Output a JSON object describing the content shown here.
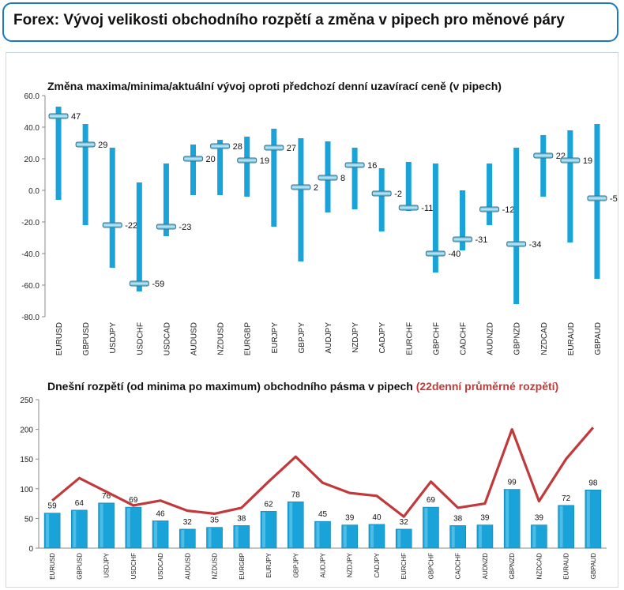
{
  "header": {
    "title": "Forex: Vývoj velikosti obchodního rozpětí a změna v pipech pro měnové páry"
  },
  "colors": {
    "bar": "#1aa3d8",
    "bar_dark": "#0f7fb0",
    "line": "#c0393b",
    "border": "#1a78c2",
    "highlight_text": "#c0393b"
  },
  "chart_data": [
    {
      "type": "candlestick-range",
      "title": "Změna maxima/minima/aktuální vývoj oproti předchozí denní uzavírací ceně (v pipech)",
      "categories": [
        "EURUSD",
        "GBPUSD",
        "USDJPY",
        "USDCHF",
        "USDCAD",
        "AUDUSD",
        "NZDUSD",
        "EURGBP",
        "EURJPY",
        "GBPJPY",
        "AUDJPY",
        "NZDJPY",
        "CADJPY",
        "EURCHF",
        "GBPCHF",
        "CADCHF",
        "AUDNZD",
        "GBPNZD",
        "NZDCAD",
        "EURAUD",
        "GBPAUD"
      ],
      "high": [
        53,
        42,
        27,
        5,
        17,
        29,
        32,
        34,
        39,
        33,
        31,
        27,
        14,
        18,
        17,
        0,
        17,
        27,
        35,
        38,
        42
      ],
      "low": [
        -6,
        -22,
        -49,
        -64,
        -29,
        -3,
        -3,
        -4,
        -23,
        -45,
        -14,
        -12,
        -26,
        -13,
        -52,
        -38,
        -22,
        -72,
        -4,
        -33,
        -56
      ],
      "current": [
        47,
        29,
        -22,
        -59,
        -23,
        20,
        28,
        19,
        27,
        2,
        8,
        16,
        -2,
        -11,
        -40,
        -31,
        -12,
        -34,
        22,
        19,
        -5
      ],
      "current_labels": [
        "47",
        "29",
        "-22",
        "-59",
        "-23",
        "20",
        "28",
        "19",
        "27",
        "2",
        "8",
        "16",
        "-2",
        "-11",
        "-40",
        "-31",
        "-12",
        "-34",
        "22",
        "19",
        "-5"
      ],
      "ylim": [
        -80,
        60
      ],
      "yticks": [
        "60.0",
        "40.0",
        "20.0",
        "0.0",
        "-20.0",
        "-40.0",
        "-60.0",
        "-80.0"
      ],
      "ytick_values": [
        60,
        40,
        20,
        0,
        -20,
        -40,
        -60,
        -80
      ],
      "grid": false
    },
    {
      "type": "bar+line",
      "title": "Dnešní rozpětí (od minima po maximum) obchodního pásma v pipech",
      "title_highlight": "(22denní průměrné rozpětí)",
      "categories": [
        "EURUSD",
        "GBPUSD",
        "USDJPY",
        "USDCHF",
        "USDCAD",
        "AUDUSD",
        "NZDUSD",
        "EURGBP",
        "EURJPY",
        "GBPJPY",
        "AUDJPY",
        "NZDJPY",
        "CADJPY",
        "EURCHF",
        "GBPCHF",
        "CADCHF",
        "AUDNZD",
        "GBPNZD",
        "NZDCAD",
        "EURAUD",
        "GBPAUD"
      ],
      "bars": [
        59,
        64,
        76,
        69,
        46,
        32,
        35,
        38,
        62,
        78,
        45,
        39,
        40,
        32,
        69,
        38,
        39,
        99,
        39,
        72,
        98
      ],
      "bar_labels": [
        "59",
        "64",
        "76",
        "69",
        "46",
        "32",
        "35",
        "38",
        "62",
        "78",
        "45",
        "39",
        "40",
        "32",
        "69",
        "38",
        "39",
        "99",
        "39",
        "72",
        "98"
      ],
      "line": [
        80,
        118,
        95,
        72,
        80,
        63,
        58,
        68,
        112,
        154,
        110,
        93,
        88,
        53,
        112,
        68,
        75,
        200,
        79,
        150,
        203
      ],
      "ylim": [
        0,
        250
      ],
      "yticks": [
        "250",
        "200",
        "150",
        "100",
        "50",
        "0"
      ],
      "ytick_values": [
        250,
        200,
        150,
        100,
        50,
        0
      ],
      "grid": false
    }
  ]
}
